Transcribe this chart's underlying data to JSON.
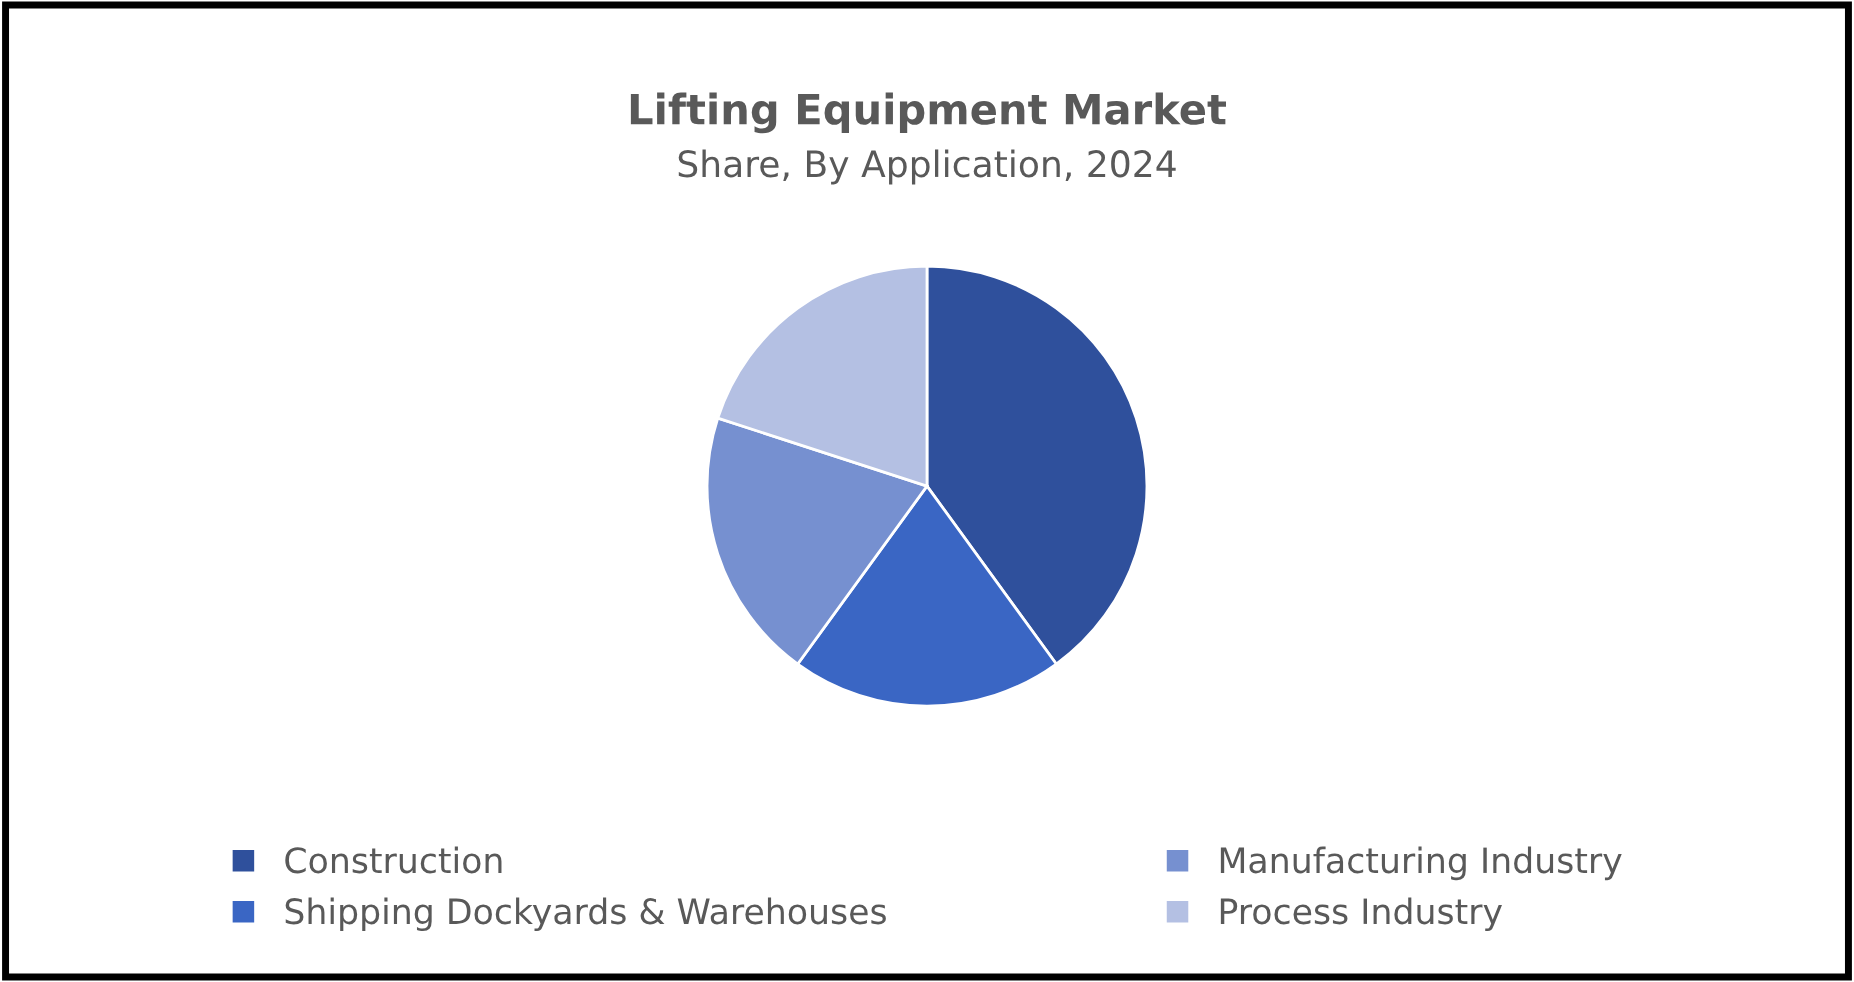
{
  "chart_data": {
    "type": "pie",
    "title": "Lifting Equipment Market",
    "subtitle": "Share, By Application, 2024",
    "categories": [
      "Construction",
      "Shipping Dockyards & Warehouses",
      "Manufacturing Industry",
      "Process Industry"
    ],
    "values": [
      40,
      20,
      20,
      20
    ],
    "colors": [
      "#2f509c",
      "#3a66c4",
      "#7690d0",
      "#b4c0e3"
    ],
    "legend": "bottom"
  }
}
